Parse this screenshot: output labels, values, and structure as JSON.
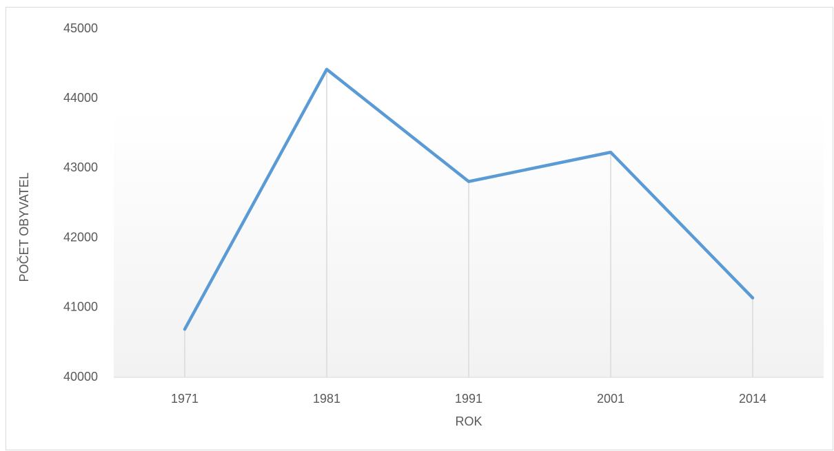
{
  "chart_data": {
    "type": "line",
    "x_label": "ROK",
    "y_label": "POČET OBYVATEL",
    "categories": [
      "1971",
      "1981",
      "1991",
      "2001",
      "2014"
    ],
    "values": [
      40690,
      44420,
      42810,
      43230,
      41140
    ],
    "color": "#5b9bd5",
    "drop_lines": true,
    "ylim": [
      40000,
      45000
    ],
    "yticks": [
      40000,
      41000,
      42000,
      43000,
      44000,
      45000
    ]
  }
}
